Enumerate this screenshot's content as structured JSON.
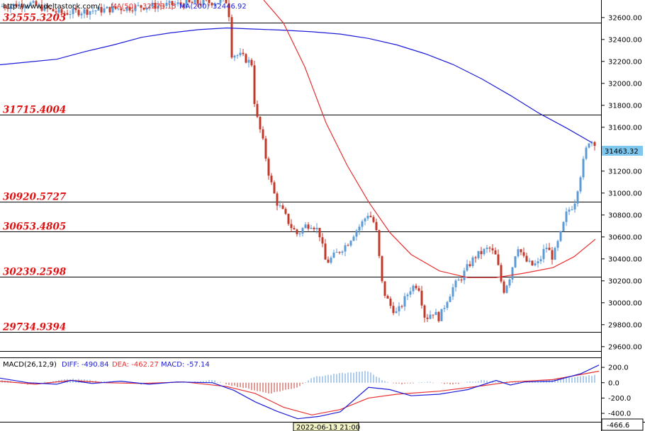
{
  "header": {
    "url": "http://www.deltastock.com/",
    "ma50_label": "MA(50)",
    "ma50_value": "32273.15",
    "ma200_label": "MA(200)",
    "ma200_value": "32446.92"
  },
  "macd_header": {
    "title": "MACD(26,12,9)",
    "diff": "DIFF: -490.84",
    "dea": "DEA: -462.27",
    "macd": "MACD: -57.14"
  },
  "levels": [
    "32555.3203",
    "31715.4004",
    "30920.5727",
    "30653.4805",
    "30239.2598",
    "29734.9394"
  ],
  "price_ticks": [
    "32600.00",
    "32400.00",
    "32200.00",
    "32000.00",
    "31800.00",
    "31600.00",
    "31400.00",
    "31200.00",
    "31000.00",
    "30800.00",
    "30600.00",
    "30400.00",
    "30200.00",
    "30000.00",
    "29800.00",
    "29600.00"
  ],
  "macd_ticks": [
    "200.0",
    "0.0",
    "-200.0",
    "-400.0"
  ],
  "last_price_label": "31463.32",
  "macd_readout": "-466.6",
  "time_label": "2022-06-13 21:00",
  "colors": {
    "up": "#5b9bd5",
    "down": "#c0392b",
    "ma50": "#e83030",
    "ma200": "#1c1cd8",
    "level_text": "#e01010",
    "macd_blue": "#1c1cd8",
    "macd_red": "#e83030"
  },
  "chart_data": {
    "type": "candlestick",
    "price_axis": {
      "ylim": [
        29560,
        32760
      ],
      "ticks": [
        32600,
        32400,
        32200,
        32000,
        31800,
        31600,
        31400,
        31200,
        31000,
        30800,
        30600,
        30400,
        30200,
        30000,
        29800,
        29600
      ]
    },
    "levels": [
      32555.3203,
      31715.4004,
      30920.5727,
      30653.4805,
      30239.2598,
      29734.9394
    ],
    "last_price": 31463.32,
    "ma200": [
      [
        0,
        32170
      ],
      [
        40,
        32195
      ],
      [
        80,
        32220
      ],
      [
        120,
        32290
      ],
      [
        160,
        32350
      ],
      [
        200,
        32420
      ],
      [
        240,
        32460
      ],
      [
        280,
        32490
      ],
      [
        320,
        32505
      ],
      [
        360,
        32495
      ],
      [
        400,
        32485
      ],
      [
        440,
        32470
      ],
      [
        480,
        32450
      ],
      [
        520,
        32410
      ],
      [
        560,
        32350
      ],
      [
        600,
        32270
      ],
      [
        640,
        32170
      ],
      [
        680,
        32040
      ],
      [
        720,
        31890
      ],
      [
        760,
        31730
      ],
      [
        800,
        31590
      ],
      [
        835,
        31460
      ]
    ],
    "ma50": [
      [
        372,
        32760
      ],
      [
        400,
        32550
      ],
      [
        430,
        32150
      ],
      [
        460,
        31640
      ],
      [
        490,
        31250
      ],
      [
        520,
        30920
      ],
      [
        550,
        30640
      ],
      [
        580,
        30440
      ],
      [
        620,
        30290
      ],
      [
        660,
        30230
      ],
      [
        700,
        30230
      ],
      [
        740,
        30270
      ],
      [
        780,
        30320
      ],
      [
        810,
        30420
      ],
      [
        840,
        30580
      ]
    ],
    "candles_anchor": [
      [
        0,
        32700
      ],
      [
        40,
        32730
      ],
      [
        85,
        32640
      ],
      [
        200,
        32700
      ],
      [
        322,
        32750
      ],
      [
        326,
        32270
      ],
      [
        340,
        32250
      ],
      [
        355,
        32180
      ],
      [
        360,
        31750
      ],
      [
        370,
        31500
      ],
      [
        380,
        31150
      ],
      [
        390,
        30920
      ],
      [
        400,
        30820
      ],
      [
        410,
        30700
      ],
      [
        420,
        30620
      ],
      [
        430,
        30700
      ],
      [
        440,
        30720
      ],
      [
        450,
        30650
      ],
      [
        460,
        30360
      ],
      [
        470,
        30420
      ],
      [
        480,
        30480
      ],
      [
        490,
        30540
      ],
      [
        500,
        30640
      ],
      [
        510,
        30720
      ],
      [
        520,
        30820
      ],
      [
        530,
        30700
      ],
      [
        540,
        30120
      ],
      [
        550,
        29980
      ],
      [
        560,
        29900
      ],
      [
        570,
        30020
      ],
      [
        580,
        30140
      ],
      [
        590,
        30170
      ],
      [
        600,
        29850
      ],
      [
        610,
        29920
      ],
      [
        620,
        29860
      ],
      [
        630,
        30020
      ],
      [
        640,
        30150
      ],
      [
        650,
        30220
      ],
      [
        660,
        30330
      ],
      [
        670,
        30420
      ],
      [
        680,
        30460
      ],
      [
        690,
        30500
      ],
      [
        700,
        30420
      ],
      [
        710,
        30100
      ],
      [
        720,
        30250
      ],
      [
        730,
        30530
      ],
      [
        740,
        30390
      ],
      [
        750,
        30340
      ],
      [
        760,
        30360
      ],
      [
        770,
        30520
      ],
      [
        780,
        30410
      ],
      [
        790,
        30600
      ],
      [
        800,
        30830
      ],
      [
        810,
        30900
      ],
      [
        820,
        31200
      ],
      [
        830,
        31480
      ],
      [
        840,
        31463
      ]
    ],
    "macd_axis": {
      "ylim": [
        -510,
        330
      ],
      "ticks": [
        200,
        0,
        -200,
        -400
      ]
    },
    "diff_series": [
      [
        0,
        60
      ],
      [
        40,
        0
      ],
      [
        80,
        -20
      ],
      [
        100,
        30
      ],
      [
        130,
        -10
      ],
      [
        170,
        20
      ],
      [
        210,
        -20
      ],
      [
        250,
        10
      ],
      [
        300,
        0
      ],
      [
        330,
        -100
      ],
      [
        360,
        -250
      ],
      [
        390,
        -370
      ],
      [
        420,
        -470
      ],
      [
        450,
        -440
      ],
      [
        480,
        -380
      ],
      [
        520,
        -60
      ],
      [
        550,
        -90
      ],
      [
        580,
        -170
      ],
      [
        620,
        -150
      ],
      [
        660,
        -90
      ],
      [
        700,
        30
      ],
      [
        720,
        -30
      ],
      [
        740,
        10
      ],
      [
        780,
        20
      ],
      [
        820,
        120
      ],
      [
        845,
        230
      ]
    ],
    "dea_series": [
      [
        0,
        20
      ],
      [
        50,
        -20
      ],
      [
        100,
        30
      ],
      [
        150,
        0
      ],
      [
        200,
        -10
      ],
      [
        260,
        10
      ],
      [
        320,
        -50
      ],
      [
        360,
        -140
      ],
      [
        400,
        -320
      ],
      [
        440,
        -420
      ],
      [
        480,
        -350
      ],
      [
        520,
        -200
      ],
      [
        560,
        -150
      ],
      [
        620,
        -110
      ],
      [
        680,
        -40
      ],
      [
        720,
        10
      ],
      [
        780,
        40
      ],
      [
        845,
        150
      ]
    ],
    "macd_hist": [
      [
        0,
        40
      ],
      [
        40,
        -20
      ],
      [
        100,
        50
      ],
      [
        200,
        -20
      ],
      [
        300,
        30
      ],
      [
        330,
        -40
      ],
      [
        380,
        -140
      ],
      [
        420,
        -60
      ],
      [
        440,
        70
      ],
      [
        480,
        120
      ],
      [
        520,
        150
      ],
      [
        540,
        30
      ],
      [
        560,
        -20
      ],
      [
        600,
        10
      ],
      [
        640,
        -20
      ],
      [
        680,
        30
      ],
      [
        700,
        10
      ],
      [
        760,
        20
      ],
      [
        800,
        70
      ],
      [
        845,
        100
      ]
    ]
  }
}
